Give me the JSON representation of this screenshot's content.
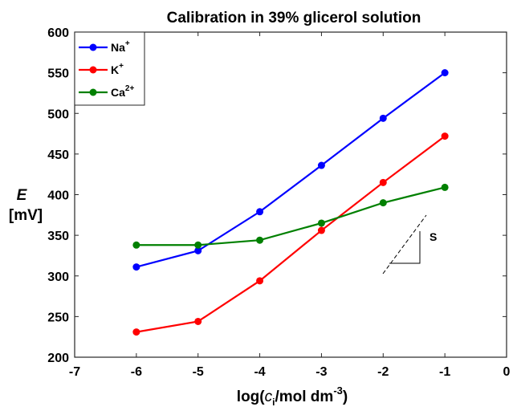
{
  "chart_data": {
    "type": "line",
    "title": "Calibration in 39% glicerol solution",
    "xlabel": {
      "prefix": "log(",
      "var": "c",
      "sub": "i",
      "unit": "/mol dm",
      "sup": "-3",
      "suffix": ")"
    },
    "ylabel": {
      "symbol": "E",
      "unit": "[mV]"
    },
    "xlim": [
      -7,
      0
    ],
    "ylim": [
      200,
      600
    ],
    "xticks": [
      "-7",
      "-6",
      "-5",
      "-4",
      "-3",
      "-2",
      "-1",
      "0"
    ],
    "yticks": [
      "200",
      "250",
      "300",
      "350",
      "400",
      "450",
      "500",
      "550",
      "600"
    ],
    "grid": false,
    "legend_position": "top-left",
    "x": [
      -6,
      -5,
      -4,
      -3,
      -2,
      -1
    ],
    "series": [
      {
        "name": "Na",
        "charge": "+",
        "color": "#0000ff",
        "values": [
          311,
          331,
          379,
          436,
          494,
          550
        ]
      },
      {
        "name": "K",
        "charge": "+",
        "color": "#ff0000",
        "values": [
          231,
          244,
          294,
          356,
          415,
          472
        ]
      },
      {
        "name": "Ca",
        "charge": "2+",
        "color": "#008000",
        "values": [
          338,
          338,
          344,
          365,
          390,
          409
        ]
      }
    ],
    "annotation": {
      "label": "S"
    }
  }
}
